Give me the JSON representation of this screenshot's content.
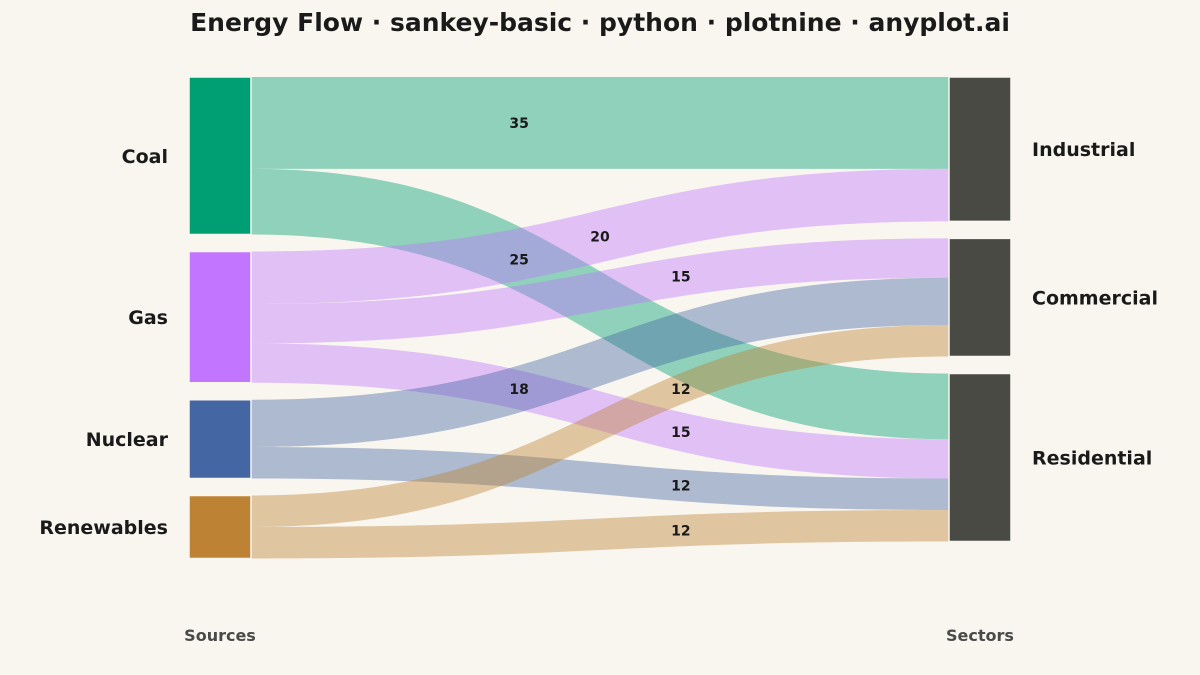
{
  "chart_data": {
    "type": "sankey",
    "title": "Energy Flow · sankey-basic · python · plotnine · anyplot.ai",
    "source_axis_label": "Sources",
    "target_axis_label": "Sectors",
    "sources": [
      {
        "name": "Coal",
        "color": "#009E73"
      },
      {
        "name": "Gas",
        "color": "#C275FF"
      },
      {
        "name": "Nuclear",
        "color": "#4467A3"
      },
      {
        "name": "Renewables",
        "color": "#BD8233"
      }
    ],
    "targets": [
      {
        "name": "Industrial",
        "color": "#4A4A44"
      },
      {
        "name": "Commercial",
        "color": "#4A4A44"
      },
      {
        "name": "Residential",
        "color": "#4A4A44"
      }
    ],
    "flows": [
      {
        "source": "Coal",
        "target": "Industrial",
        "value": 35
      },
      {
        "source": "Coal",
        "target": "Residential",
        "value": 25
      },
      {
        "source": "Gas",
        "target": "Industrial",
        "value": 20
      },
      {
        "source": "Gas",
        "target": "Commercial",
        "value": 15
      },
      {
        "source": "Gas",
        "target": "Residential",
        "value": 15
      },
      {
        "source": "Nuclear",
        "target": "Commercial",
        "value": 18
      },
      {
        "source": "Nuclear",
        "target": "Residential",
        "value": 12
      },
      {
        "source": "Renewables",
        "target": "Commercial",
        "value": 12
      },
      {
        "source": "Renewables",
        "target": "Residential",
        "value": 12
      }
    ]
  }
}
